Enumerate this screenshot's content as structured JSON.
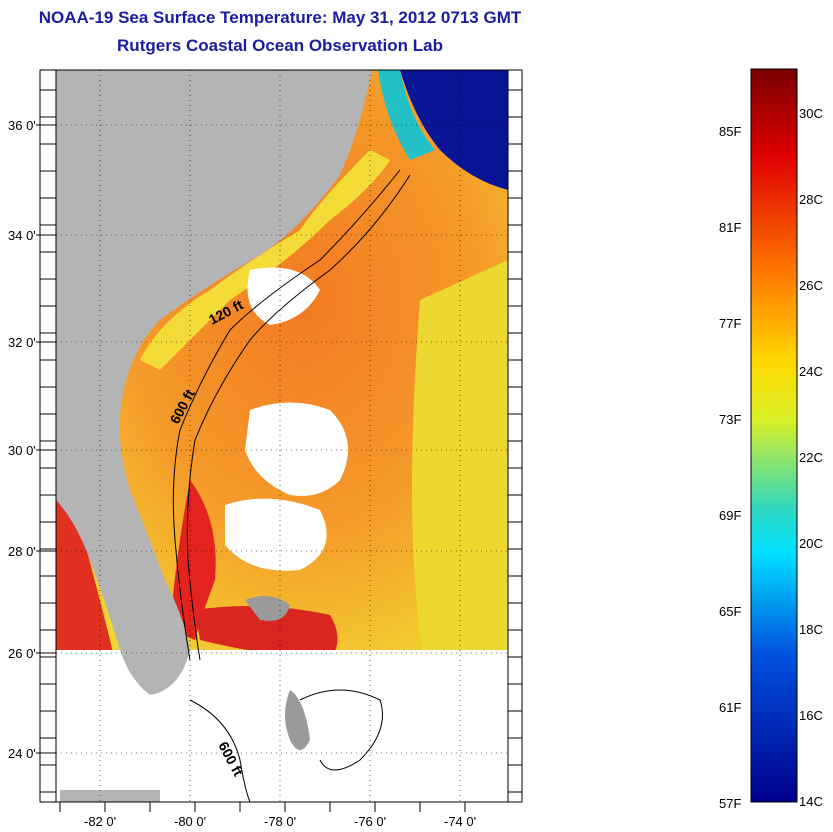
{
  "title_line1": "NOAA-19 Sea Surface Temperature:  May 31, 2012 0713 GMT",
  "title_line2": "Rutgers Coastal Ocean Observation Lab",
  "map": {
    "lat_labels": [
      "36 0'",
      "34 0'",
      "32 0'",
      "30 0'",
      "28 0'",
      "26 0'",
      "24 0'"
    ],
    "lon_labels": [
      "-82 0'",
      "-80 0'",
      "-78 0'",
      "-76 0'",
      "-74 0'"
    ],
    "contour_labels": [
      "120 ft",
      "600 ft",
      "600 ft"
    ],
    "colors": {
      "land": "#b4b4b4",
      "cloud": "#ffffff",
      "warm": "#f07a1e",
      "hot": "#e2231e",
      "mild": "#f0e628",
      "cold": "#0a1496"
    }
  },
  "colorbar": {
    "f_labels": [
      "85F",
      "81F",
      "77F",
      "73F",
      "69F",
      "65F",
      "61F",
      "57F"
    ],
    "c_labels": [
      "30C",
      "28C",
      "26C",
      "24C",
      "22C",
      "20C",
      "18C",
      "16C",
      "14C"
    ],
    "stops": [
      "#7a0000",
      "#e00000",
      "#ff7a00",
      "#ffd800",
      "#d8f028",
      "#30d8c0",
      "#00e0ff",
      "#0050e0",
      "#00008a"
    ]
  }
}
